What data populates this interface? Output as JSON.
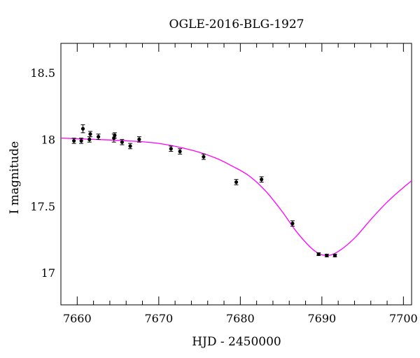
{
  "chart_data": {
    "type": "scatter",
    "title": "OGLE-2016-BLG-1927",
    "xlabel": "HJD - 2450000",
    "ylabel": "I magnitude",
    "xlim": [
      7658,
      7701
    ],
    "ylim": [
      18.72,
      16.76
    ],
    "y_inverted": true,
    "grid": false,
    "x_ticks": [
      "7660",
      "7670",
      "7680",
      "7690",
      "7700"
    ],
    "y_ticks": [
      "17",
      "17.5",
      "18",
      "18.5"
    ],
    "colors": {
      "points": "#000000",
      "model": "#ff00ff"
    },
    "series": [
      {
        "kind": "points",
        "values": [
          {
            "x": 7659.6,
            "y": 17.99,
            "err": 0.02
          },
          {
            "x": 7660.5,
            "y": 17.99,
            "err": 0.02
          },
          {
            "x": 7660.7,
            "y": 18.08,
            "err": 0.03
          },
          {
            "x": 7661.5,
            "y": 18.0,
            "err": 0.02
          },
          {
            "x": 7661.6,
            "y": 18.04,
            "err": 0.02
          },
          {
            "x": 7662.6,
            "y": 18.02,
            "err": 0.02
          },
          {
            "x": 7664.5,
            "y": 18.01,
            "err": 0.03
          },
          {
            "x": 7664.6,
            "y": 18.03,
            "err": 0.02
          },
          {
            "x": 7665.5,
            "y": 17.98,
            "err": 0.02
          },
          {
            "x": 7666.5,
            "y": 17.95,
            "err": 0.02
          },
          {
            "x": 7667.6,
            "y": 18.0,
            "err": 0.02
          },
          {
            "x": 7671.5,
            "y": 17.93,
            "err": 0.02
          },
          {
            "x": 7672.6,
            "y": 17.91,
            "err": 0.02
          },
          {
            "x": 7675.5,
            "y": 17.87,
            "err": 0.02
          },
          {
            "x": 7679.5,
            "y": 17.68,
            "err": 0.02
          },
          {
            "x": 7682.6,
            "y": 17.7,
            "err": 0.02
          },
          {
            "x": 7686.4,
            "y": 17.37,
            "err": 0.02
          },
          {
            "x": 7689.6,
            "y": 17.14,
            "err": 0.01
          },
          {
            "x": 7690.6,
            "y": 17.13,
            "err": 0.01
          },
          {
            "x": 7691.6,
            "y": 17.13,
            "err": 0.01
          }
        ]
      },
      {
        "kind": "model-curve",
        "values": [
          {
            "x": 7658.0,
            "y": 18.01
          },
          {
            "x": 7662.0,
            "y": 18.0
          },
          {
            "x": 7666.0,
            "y": 17.99
          },
          {
            "x": 7670.0,
            "y": 17.97
          },
          {
            "x": 7674.0,
            "y": 17.92
          },
          {
            "x": 7677.0,
            "y": 17.86
          },
          {
            "x": 7679.0,
            "y": 17.8
          },
          {
            "x": 7681.0,
            "y": 17.73
          },
          {
            "x": 7683.0,
            "y": 17.62
          },
          {
            "x": 7685.0,
            "y": 17.47
          },
          {
            "x": 7687.0,
            "y": 17.3
          },
          {
            "x": 7689.0,
            "y": 17.17
          },
          {
            "x": 7690.5,
            "y": 17.13
          },
          {
            "x": 7692.0,
            "y": 17.16
          },
          {
            "x": 7694.0,
            "y": 17.26
          },
          {
            "x": 7696.0,
            "y": 17.4
          },
          {
            "x": 7698.0,
            "y": 17.53
          },
          {
            "x": 7700.0,
            "y": 17.64
          },
          {
            "x": 7701.0,
            "y": 17.69
          }
        ]
      }
    ]
  }
}
